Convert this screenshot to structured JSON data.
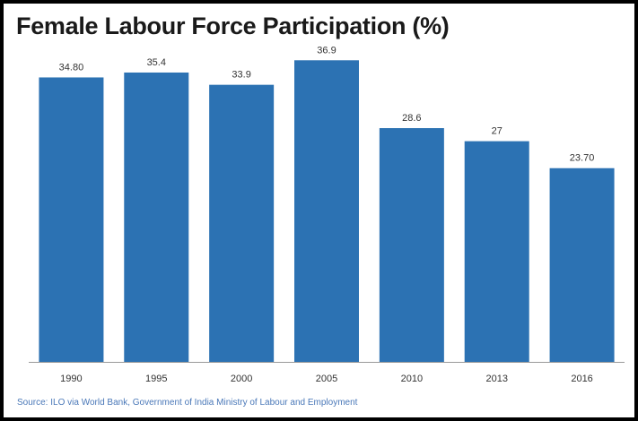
{
  "title": "Female Labour Force Participation (%)",
  "source": "Source: ILO via World Bank, Government of India Ministry of Labour and Employment",
  "colors": {
    "bar": "#2c72b3",
    "axis": "#999999",
    "text": "#333333",
    "source": "#4a78b8"
  },
  "chart_data": {
    "type": "bar",
    "title": "Female Labour Force Participation (%)",
    "xlabel": "",
    "ylabel": "",
    "categories": [
      "1990",
      "1995",
      "2000",
      "2005",
      "2010",
      "2013",
      "2016"
    ],
    "values": [
      34.8,
      35.4,
      33.9,
      36.9,
      28.6,
      27,
      23.7
    ],
    "value_labels": [
      "34.80",
      "35.4",
      "33.9",
      "36.9",
      "28.6",
      "27",
      "23.70"
    ],
    "ylim": [
      0,
      40
    ],
    "grid": false,
    "legend": "none"
  }
}
